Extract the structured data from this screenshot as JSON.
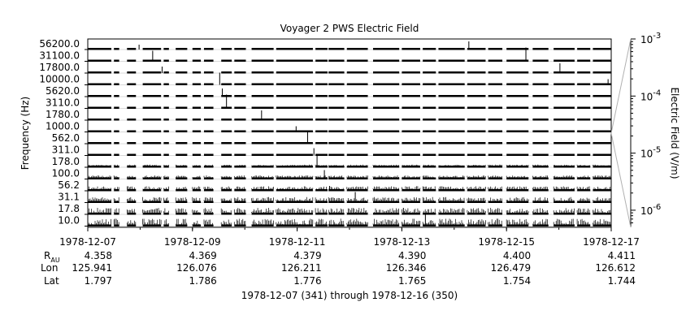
{
  "chart_data": {
    "type": "line",
    "title": "Voyager 2 PWS Electric Field",
    "ylabel": "Frequency (Hz)",
    "colorbar_label": "Electric Field (V/m)",
    "channels_hz": [
      "56200.0",
      "31100.0",
      "17800.0",
      "10000.0",
      "5620.0",
      "3110.0",
      "1780.0",
      "1000.0",
      "562.0",
      "311.0",
      "178.0",
      "100.0",
      "56.2",
      "31.1",
      "17.8",
      "10.0"
    ],
    "colorbar_ticks": [
      {
        "base": "10",
        "exp": "-3",
        "value": 0.001
      },
      {
        "base": "10",
        "exp": "-4",
        "value": 0.0001
      },
      {
        "base": "10",
        "exp": "-5",
        "value": 1e-05
      },
      {
        "base": "10",
        "exp": "-6",
        "value": 1e-06
      }
    ],
    "colorbar_scale": "log",
    "x_ticks": [
      {
        "date": "1978-12-07",
        "rau": "4.358",
        "lon": "125.941",
        "lat": "1.797"
      },
      {
        "date": "1978-12-09",
        "rau": "4.369",
        "lon": "126.076",
        "lat": "1.786"
      },
      {
        "date": "1978-12-11",
        "rau": "4.379",
        "lon": "126.211",
        "lat": "1.776"
      },
      {
        "date": "1978-12-13",
        "rau": "4.390",
        "lon": "126.346",
        "lat": "1.765"
      },
      {
        "date": "1978-12-15",
        "rau": "4.400",
        "lon": "126.479",
        "lat": "1.754"
      },
      {
        "date": "1978-12-17",
        "rau": "4.411",
        "lon": "126.612",
        "lat": "1.744"
      }
    ],
    "xlim": [
      "1978-12-07",
      "1978-12-17"
    ],
    "data_segments_days": [
      [
        0.0,
        0.45
      ],
      [
        0.5,
        0.6
      ],
      [
        0.75,
        0.92
      ],
      [
        1.05,
        1.4
      ],
      [
        1.45,
        1.55
      ],
      [
        1.68,
        1.9
      ],
      [
        2.0,
        2.16
      ],
      [
        2.22,
        2.4
      ],
      [
        2.55,
        2.75
      ],
      [
        2.8,
        3.02
      ],
      [
        3.13,
        3.55
      ],
      [
        3.6,
        4.3
      ],
      [
        4.35,
        4.58
      ],
      [
        4.6,
        4.9
      ],
      [
        4.95,
        5.35
      ],
      [
        5.45,
        5.95
      ],
      [
        6.0,
        6.35
      ],
      [
        6.4,
        6.65
      ],
      [
        6.7,
        7.2
      ],
      [
        7.25,
        7.6
      ],
      [
        7.65,
        7.92
      ],
      [
        8.0,
        8.42
      ],
      [
        8.5,
        8.8
      ],
      [
        8.9,
        9.3
      ],
      [
        9.35,
        9.6
      ],
      [
        9.65,
        10.0
      ]
    ],
    "spike_days": [
      0.98,
      1.24,
      1.42,
      2.52,
      2.57,
      2.65,
      3.32,
      3.98,
      4.2,
      4.32,
      4.38,
      4.52,
      4.62,
      5.11,
      6.03,
      6.45,
      7.28,
      8.37,
      9.02,
      9.94
    ]
  },
  "row_labels": {
    "rau_base": "R",
    "rau_sub": "AU",
    "lon": "Lon",
    "lat": "Lat"
  },
  "footer": {
    "date_range": "1978-12-07 (341) through 1978-12-16 (350)"
  }
}
